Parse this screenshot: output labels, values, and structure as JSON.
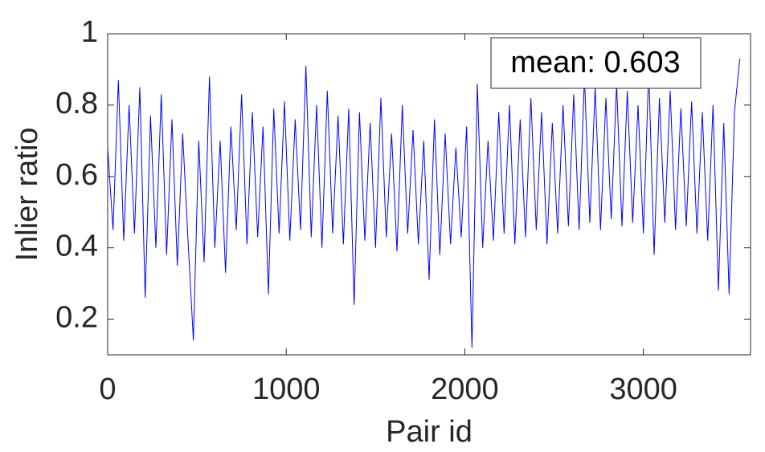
{
  "chart_data": {
    "type": "line",
    "xlabel": "Pair id",
    "ylabel": "Inlier ratio",
    "annotation": "mean: 0.603",
    "x": [
      0,
      30,
      60,
      90,
      120,
      150,
      180,
      210,
      240,
      270,
      300,
      330,
      360,
      390,
      420,
      450,
      480,
      510,
      540,
      570,
      600,
      630,
      660,
      690,
      720,
      750,
      780,
      810,
      840,
      870,
      900,
      930,
      960,
      990,
      1020,
      1050,
      1080,
      1110,
      1140,
      1170,
      1200,
      1230,
      1260,
      1290,
      1320,
      1350,
      1380,
      1410,
      1440,
      1470,
      1500,
      1530,
      1560,
      1590,
      1620,
      1650,
      1680,
      1710,
      1740,
      1770,
      1800,
      1830,
      1860,
      1890,
      1920,
      1950,
      1980,
      2010,
      2040,
      2070,
      2100,
      2130,
      2160,
      2190,
      2220,
      2250,
      2280,
      2310,
      2340,
      2370,
      2400,
      2430,
      2460,
      2490,
      2520,
      2550,
      2580,
      2610,
      2640,
      2670,
      2700,
      2730,
      2760,
      2790,
      2820,
      2850,
      2880,
      2910,
      2940,
      2970,
      3000,
      3030,
      3060,
      3090,
      3120,
      3150,
      3180,
      3210,
      3240,
      3270,
      3300,
      3330,
      3360,
      3390,
      3420,
      3450,
      3480,
      3510,
      3540
    ],
    "series": [
      {
        "color": "#0000ff",
        "values": [
          0.68,
          0.45,
          0.87,
          0.42,
          0.8,
          0.44,
          0.85,
          0.26,
          0.77,
          0.4,
          0.83,
          0.38,
          0.76,
          0.35,
          0.72,
          0.42,
          0.14,
          0.7,
          0.36,
          0.88,
          0.4,
          0.7,
          0.33,
          0.74,
          0.45,
          0.83,
          0.41,
          0.78,
          0.43,
          0.74,
          0.27,
          0.79,
          0.44,
          0.81,
          0.42,
          0.76,
          0.45,
          0.91,
          0.43,
          0.8,
          0.4,
          0.84,
          0.44,
          0.77,
          0.41,
          0.79,
          0.24,
          0.78,
          0.42,
          0.75,
          0.4,
          0.82,
          0.43,
          0.72,
          0.39,
          0.8,
          0.44,
          0.73,
          0.41,
          0.7,
          0.31,
          0.76,
          0.38,
          0.72,
          0.41,
          0.68,
          0.43,
          0.74,
          0.12,
          0.86,
          0.4,
          0.7,
          0.42,
          0.78,
          0.44,
          0.8,
          0.41,
          0.76,
          0.43,
          0.82,
          0.45,
          0.78,
          0.41,
          0.75,
          0.44,
          0.8,
          0.46,
          0.83,
          0.45,
          0.88,
          0.47,
          0.85,
          0.45,
          0.82,
          0.48,
          0.86,
          0.46,
          0.84,
          0.47,
          0.8,
          0.44,
          0.9,
          0.38,
          0.82,
          0.47,
          0.84,
          0.45,
          0.79,
          0.46,
          0.81,
          0.44,
          0.78,
          0.42,
          0.8,
          0.28,
          0.75,
          0.27,
          0.78,
          0.93
        ]
      }
    ],
    "xlim": [
      0,
      3600
    ],
    "ylim": [
      0.1,
      1
    ],
    "xticks": [
      0,
      1000,
      2000,
      3000
    ],
    "yticks": [
      0.2,
      0.4,
      0.6,
      0.8,
      1
    ]
  }
}
